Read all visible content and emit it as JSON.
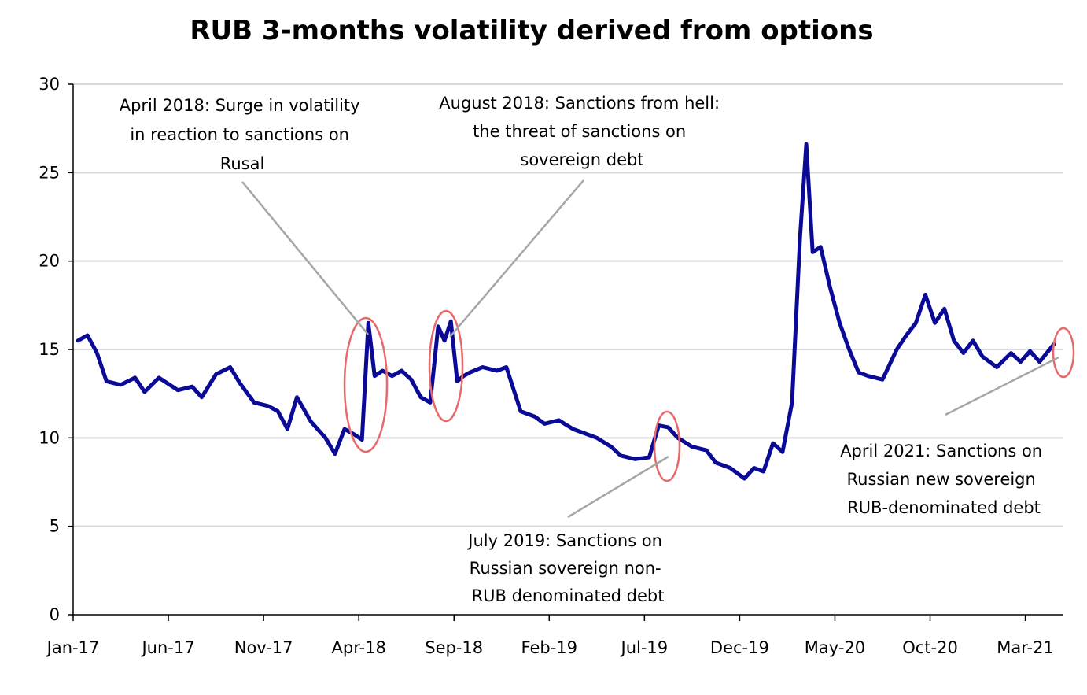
{
  "chart_data": {
    "type": "line",
    "title": "RUB 3-months volatility derived from options",
    "xlabel": "",
    "ylabel": "",
    "ylim": [
      0,
      30
    ],
    "yticks": [
      0,
      5,
      10,
      15,
      20,
      25,
      30
    ],
    "x_tick_labels": [
      "Jan-17",
      "Jun-17",
      "Nov-17",
      "Apr-18",
      "Sep-18",
      "Feb-19",
      "Jul-19",
      "Dec-19",
      "May-20",
      "Oct-20",
      "Mar-21"
    ],
    "grid": true,
    "legend": "none",
    "series": [
      {
        "color": "#0a0a96",
        "x": [
          "2017-01",
          "2017-01",
          "2017-02",
          "2017-02",
          "2017-03",
          "2017-04",
          "2017-04",
          "2017-05",
          "2017-06",
          "2017-07",
          "2017-07",
          "2017-08",
          "2017-09",
          "2017-09",
          "2017-10",
          "2017-11",
          "2017-11",
          "2017-12",
          "2017-12",
          "2018-01",
          "2018-02",
          "2018-02",
          "2018-03",
          "2018-03",
          "2018-04",
          "2018-04",
          "2018-04",
          "2018-05",
          "2018-05",
          "2018-06",
          "2018-06",
          "2018-07",
          "2018-07",
          "2018-08",
          "2018-08",
          "2018-08",
          "2018-09",
          "2018-09",
          "2018-09",
          "2018-10",
          "2018-11",
          "2018-11",
          "2018-12",
          "2019-01",
          "2019-01",
          "2019-02",
          "2019-03",
          "2019-03",
          "2019-04",
          "2019-05",
          "2019-05",
          "2019-06",
          "2019-07",
          "2019-07",
          "2019-08",
          "2019-08",
          "2019-09",
          "2019-10",
          "2019-10",
          "2019-11",
          "2019-12",
          "2019-12",
          "2020-01",
          "2020-01",
          "2020-02",
          "2020-02",
          "2020-03",
          "2020-03",
          "2020-03",
          "2020-04",
          "2020-04",
          "2020-05",
          "2020-05",
          "2020-06",
          "2020-06",
          "2020-07",
          "2020-08",
          "2020-08",
          "2020-09",
          "2020-09",
          "2020-10",
          "2020-10",
          "2020-11",
          "2020-11",
          "2020-12",
          "2020-12",
          "2021-01",
          "2021-02",
          "2021-02",
          "2021-03",
          "2021-03",
          "2021-04"
        ],
        "values": [
          15.5,
          15.8,
          14.8,
          13.2,
          13.0,
          13.4,
          12.6,
          13.4,
          12.7,
          12.9,
          12.3,
          13.6,
          14.0,
          13.1,
          12.0,
          11.8,
          11.5,
          10.5,
          12.3,
          10.9,
          10.0,
          9.1,
          10.5,
          10.2,
          9.9,
          16.5,
          13.5,
          13.8,
          13.5,
          13.8,
          13.3,
          12.3,
          12.0,
          16.3,
          15.5,
          16.6,
          13.2,
          13.5,
          13.7,
          14.0,
          13.8,
          14.0,
          11.5,
          11.2,
          10.8,
          11.0,
          10.5,
          10.3,
          10.0,
          9.5,
          9.0,
          8.8,
          8.9,
          10.7,
          10.6,
          10.0,
          9.5,
          9.3,
          8.6,
          8.3,
          7.7,
          8.3,
          8.1,
          9.7,
          9.2,
          12.0,
          21.3,
          26.6,
          20.5,
          20.8,
          18.5,
          16.5,
          15.0,
          13.7,
          13.5,
          13.3,
          15.0,
          15.8,
          16.5,
          18.1,
          16.5,
          17.3,
          15.5,
          14.8,
          15.5,
          14.6,
          14.0,
          14.8,
          14.3,
          14.9,
          14.3,
          15.3
        ]
      }
    ],
    "annotations": [
      {
        "lines": [
          "April 2018: Surge in volatility",
          "in reaction to sanctions on",
          "Rusal"
        ]
      },
      {
        "lines": [
          "August 2018: Sanctions from hell:",
          "the threat of sanctions on",
          "sovereign debt"
        ]
      },
      {
        "lines": [
          "July 2019: Sanctions on",
          "Russian sovereign non-",
          "RUB denominated debt"
        ]
      },
      {
        "lines": [
          "April 2021: Sanctions on",
          "Russian  new sovereign",
          "RUB-denominated debt"
        ]
      }
    ]
  }
}
